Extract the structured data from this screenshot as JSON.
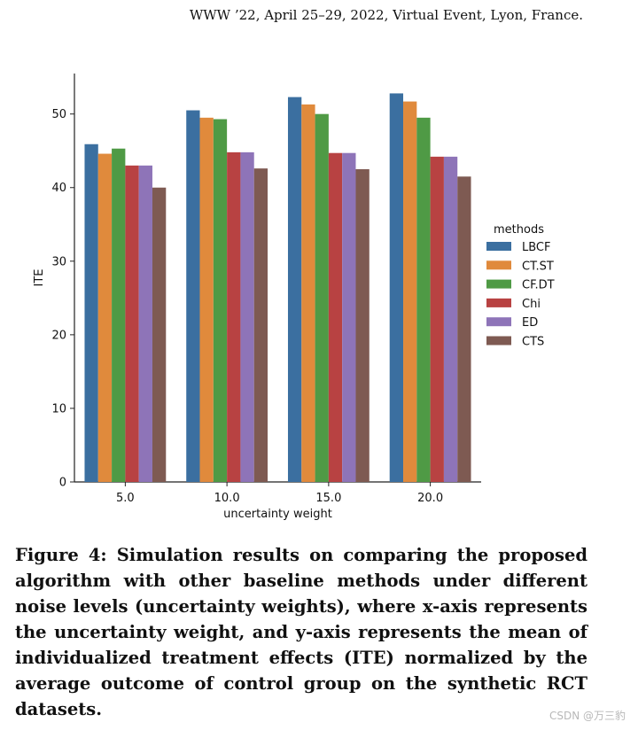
{
  "header": {
    "text": "WWW ’22, April 25–29, 2022, Virtual Event, Lyon, France."
  },
  "chart_data": {
    "type": "bar",
    "title": "",
    "xlabel": "uncertainty weight",
    "ylabel": "ITE",
    "categories": [
      "5.0",
      "10.0",
      "15.0",
      "20.0"
    ],
    "ylim": [
      0,
      55.5
    ],
    "yticks": [
      0,
      10,
      20,
      30,
      40,
      50
    ],
    "grid": false,
    "legend": {
      "title": "methods",
      "placement": "right"
    },
    "series": [
      {
        "name": "LBCF",
        "color": "#3b6fa0",
        "values": [
          45.9,
          50.5,
          52.3,
          52.8
        ]
      },
      {
        "name": "CT.ST",
        "color": "#e08a3c",
        "values": [
          44.6,
          49.5,
          51.3,
          51.7
        ]
      },
      {
        "name": "CF.DT",
        "color": "#4f9a45",
        "values": [
          45.3,
          49.3,
          50.0,
          49.5
        ]
      },
      {
        "name": "Chi",
        "color": "#b84242",
        "values": [
          43.0,
          44.8,
          44.7,
          44.2
        ]
      },
      {
        "name": "ED",
        "color": "#8e74b8",
        "values": [
          43.0,
          44.8,
          44.7,
          44.2
        ]
      },
      {
        "name": "CTS",
        "color": "#7e5a52",
        "values": [
          40.0,
          42.6,
          42.5,
          41.5
        ]
      }
    ]
  },
  "caption": {
    "text": "Figure 4: Simulation results on comparing the proposed algorithm with other baseline methods under different noise levels (uncertainty weights), where x-axis represents the uncertainty weight, and y-axis represents the mean of individualized treatment effects (ITE) normalized by the average outcome of control group on the synthetic RCT datasets."
  },
  "watermark": {
    "text": "CSDN @万三豹"
  }
}
